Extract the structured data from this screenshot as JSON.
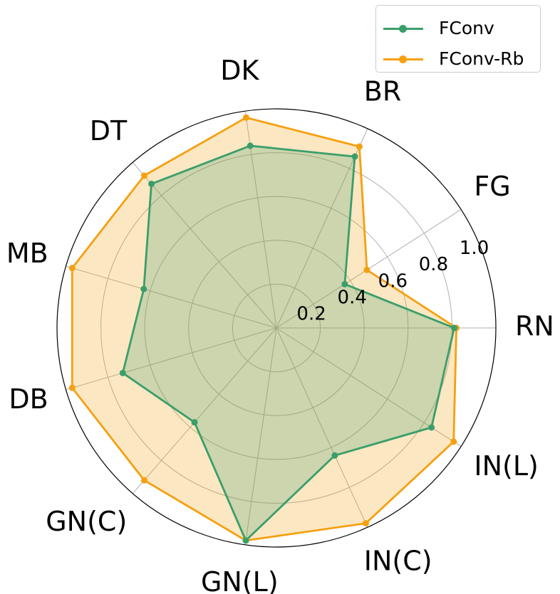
{
  "chart_data": {
    "type": "radar",
    "categories": [
      "RN",
      "FG",
      "BR",
      "DK",
      "DT",
      "MB",
      "DB",
      "GN(C)",
      "GN(L)",
      "IN(C)",
      "IN(L)"
    ],
    "radial_ticks": [
      "0.2",
      "0.4",
      "0.6",
      "0.8",
      "1.0"
    ],
    "rlim": [
      0,
      1.0
    ],
    "grid": true,
    "legend_position": "top-right",
    "series": [
      {
        "name": "FConv",
        "color": "#3a9e6a",
        "values": [
          0.81,
          0.37,
          0.86,
          0.84,
          0.87,
          0.63,
          0.73,
          0.57,
          0.98,
          0.64,
          0.84
        ]
      },
      {
        "name": "FConv-Rb",
        "color": "#f5a00f",
        "values": [
          0.82,
          0.49,
          0.91,
          0.97,
          0.92,
          0.97,
          0.97,
          0.92,
          0.98,
          0.98,
          0.96
        ]
      }
    ]
  }
}
